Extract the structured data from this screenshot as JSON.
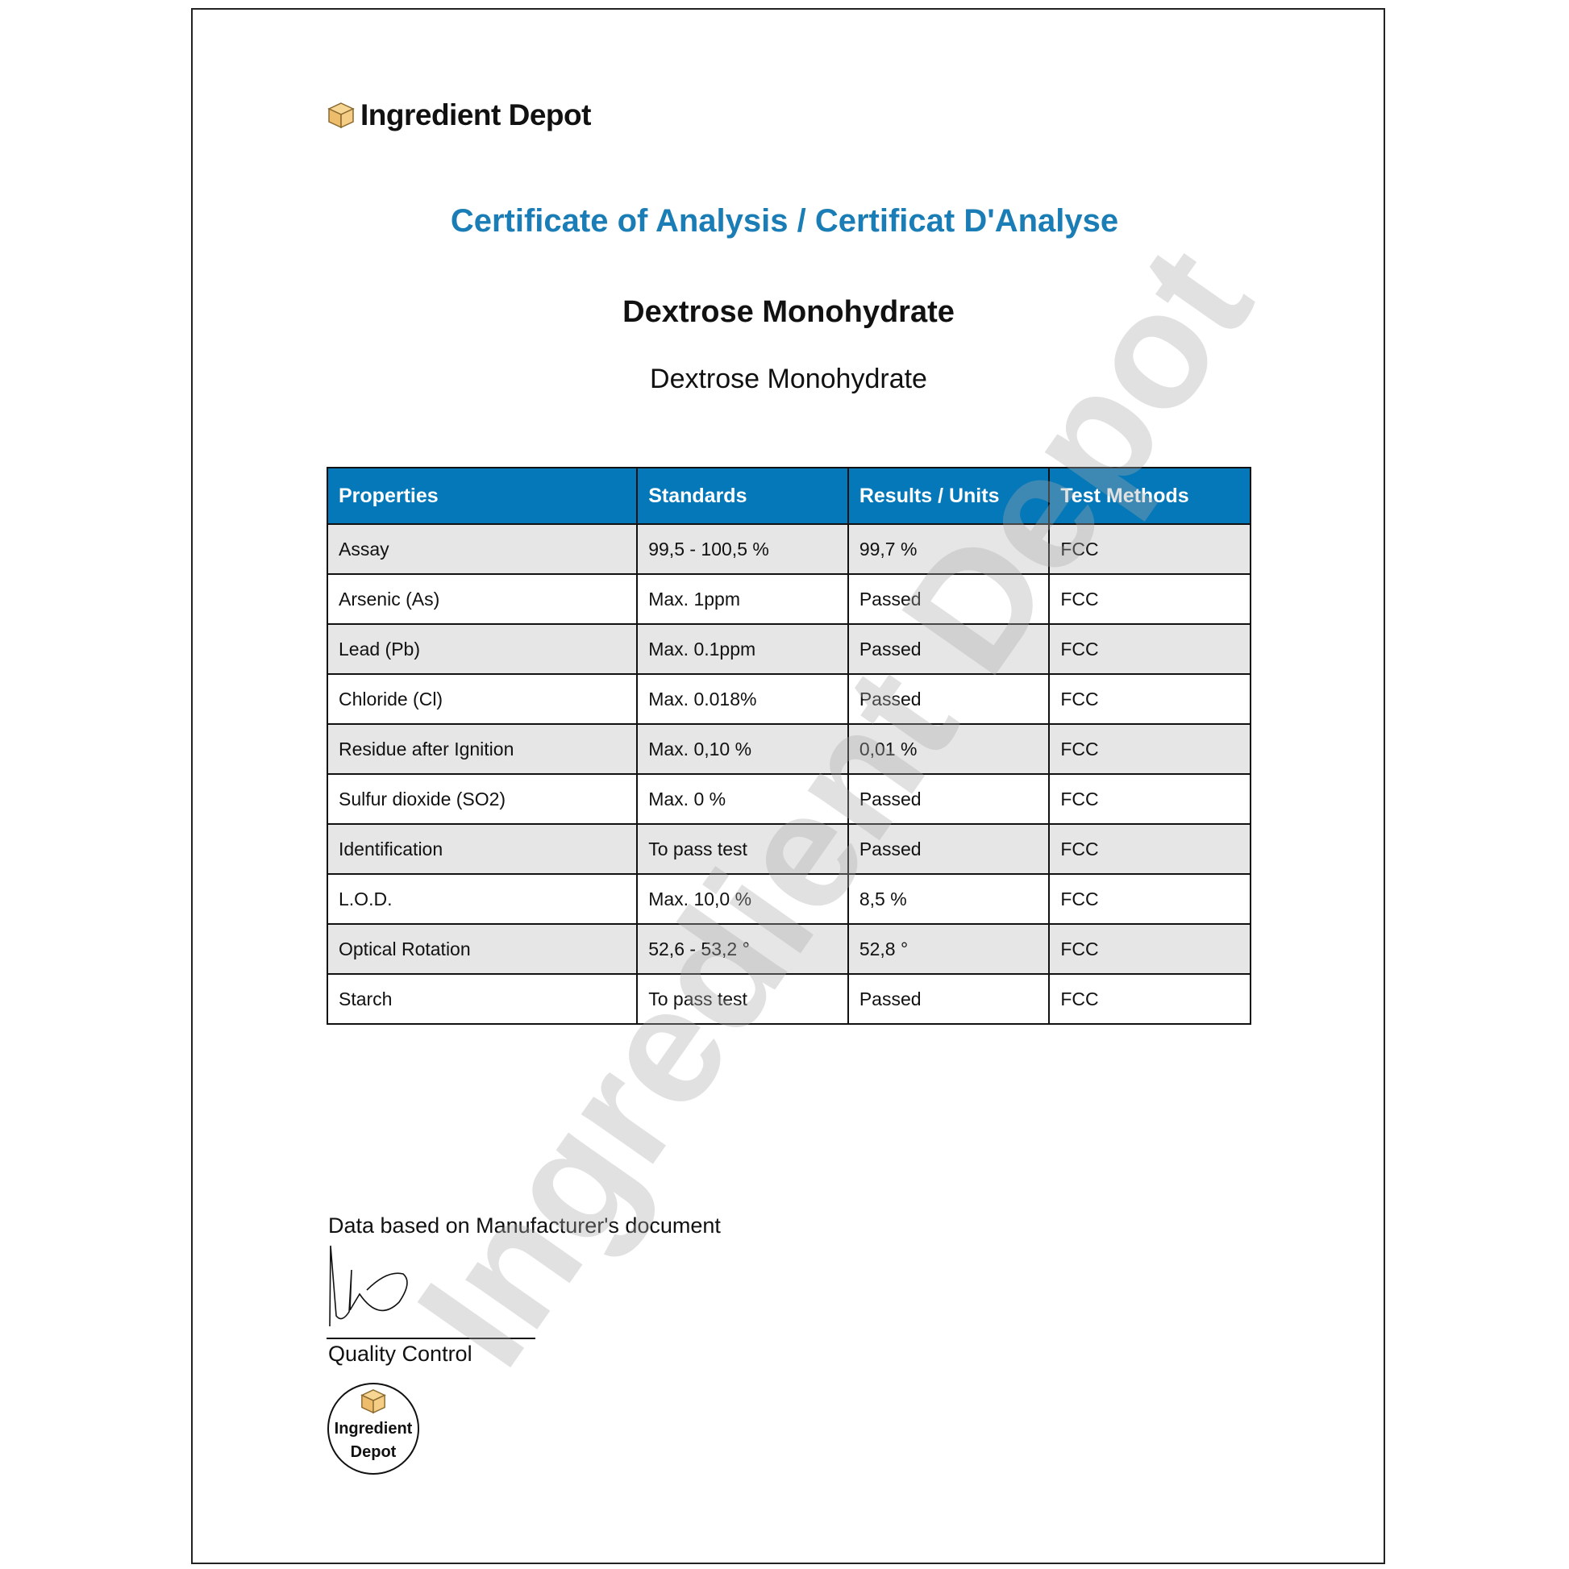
{
  "brand": {
    "name": "Ingredient Depot",
    "icon": "box-icon",
    "box_color": "#f2c77a"
  },
  "title": "Certificate of Analysis / Certificat D'Analyse",
  "product_name": "Dextrose Monohydrate",
  "product_subtitle": "Dextrose Monohydrate",
  "table": {
    "headers": [
      "Properties",
      "Standards",
      "Results / Units",
      "Test Methods"
    ],
    "rows": [
      [
        "Assay",
        "99,5 - 100,5 %",
        "99,7 %",
        "FCC"
      ],
      [
        "Arsenic (As)",
        "Max. 1ppm",
        "Passed",
        "FCC"
      ],
      [
        "Lead (Pb)",
        "Max. 0.1ppm",
        "Passed",
        "FCC"
      ],
      [
        "Chloride (Cl)",
        "Max. 0.018%",
        "Passed",
        "FCC"
      ],
      [
        "Residue after Ignition",
        "Max. 0,10 %",
        "0,01 %",
        "FCC"
      ],
      [
        "Sulfur dioxide (SO2)",
        "Max. 0 %",
        "Passed",
        "FCC"
      ],
      [
        "Identification",
        "To pass test",
        "Passed",
        "FCC"
      ],
      [
        "L.O.D.",
        "Max. 10,0 %",
        "8,5 %",
        "FCC"
      ],
      [
        "Optical Rotation",
        "52,6 - 53,2 °",
        "52,8 °",
        "FCC"
      ],
      [
        "Starch",
        "To pass test",
        "Passed",
        "FCC"
      ]
    ]
  },
  "footer": {
    "note": "Data based on Manufacturer's document",
    "signature_label": "Quality Control",
    "stamp_line1": "Ingredient",
    "stamp_line2": "Depot"
  },
  "watermark": "Ingredient Depot",
  "colors": {
    "header_bg": "#0478b8",
    "title": "#1a7db5",
    "alt_row": "#e6e6e6"
  }
}
